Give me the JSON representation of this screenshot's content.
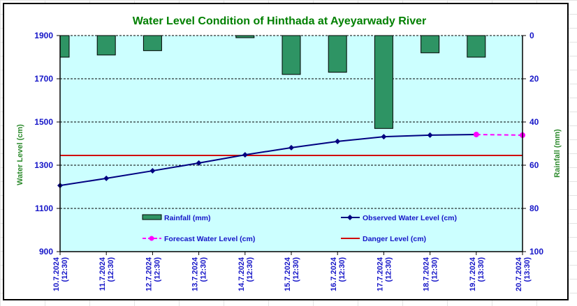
{
  "chart_data": {
    "type": "bar+line",
    "title": "Water Level Condition of Hinthada at Ayeyarwady River",
    "ylabel": "Water Level (cm)",
    "y2label": "Rainfall (mm)",
    "ylim": [
      900,
      1900
    ],
    "yticks": [
      900,
      1100,
      1300,
      1500,
      1700,
      1900
    ],
    "y2lim": [
      0,
      100
    ],
    "y2ticks": [
      0,
      20,
      40,
      60,
      80,
      100
    ],
    "y2_inverted": true,
    "grid": "horizontal-dashed",
    "categories": [
      [
        "10.7.2024",
        "(12:30)"
      ],
      [
        "11.7.2024",
        "(12:30)"
      ],
      [
        "12.7.2024",
        "(12:30)"
      ],
      [
        "13.7.2024",
        "(12:30)"
      ],
      [
        "14.7.2024",
        "(12:30)"
      ],
      [
        "15.7.2024",
        "(12:30)"
      ],
      [
        "16.7.2024",
        "(12:30)"
      ],
      [
        "17.7.2024",
        "(12:30)"
      ],
      [
        "18.7.2024",
        "(12:30)"
      ],
      [
        "19.7.2024",
        "(13:30)"
      ],
      [
        "20.7.2024",
        "(13:30)"
      ]
    ],
    "series": [
      {
        "name": "Rainfall (mm)",
        "type": "bar",
        "axis": "right",
        "color": "#2e9464",
        "values": [
          10,
          9,
          7,
          0,
          1,
          18,
          17,
          43,
          8,
          10,
          null
        ]
      },
      {
        "name": "Observed Water Level (cm)",
        "type": "line",
        "axis": "left",
        "color": "#000080",
        "values": [
          1206,
          1239,
          1274,
          1310,
          1348,
          1381,
          1410,
          1432,
          1439,
          1442,
          null
        ]
      },
      {
        "name": "Forecast Water Level (cm)",
        "type": "line-dashed",
        "axis": "left",
        "color": "#ff00ff",
        "values": [
          null,
          null,
          null,
          null,
          null,
          null,
          null,
          null,
          null,
          1442,
          1439
        ]
      },
      {
        "name": "Danger Level (cm)",
        "type": "hline",
        "axis": "left",
        "color": "#d00000",
        "value": 1345
      }
    ],
    "legend": {
      "placement": "inside-bottom",
      "items": [
        {
          "label": "Rainfall (mm)",
          "marker": "bar"
        },
        {
          "label": "Observed Water Level (cm)",
          "marker": "line-diamond"
        },
        {
          "label": "Forecast Water Level (cm)",
          "marker": "dashed-circle"
        },
        {
          "label": "Danger Level (cm)",
          "marker": "line"
        }
      ]
    },
    "colors": {
      "plot_background": "#ccffff",
      "tick_text": "#1515c8",
      "title": "#008000",
      "axis_title": "#2e8b2e"
    }
  }
}
